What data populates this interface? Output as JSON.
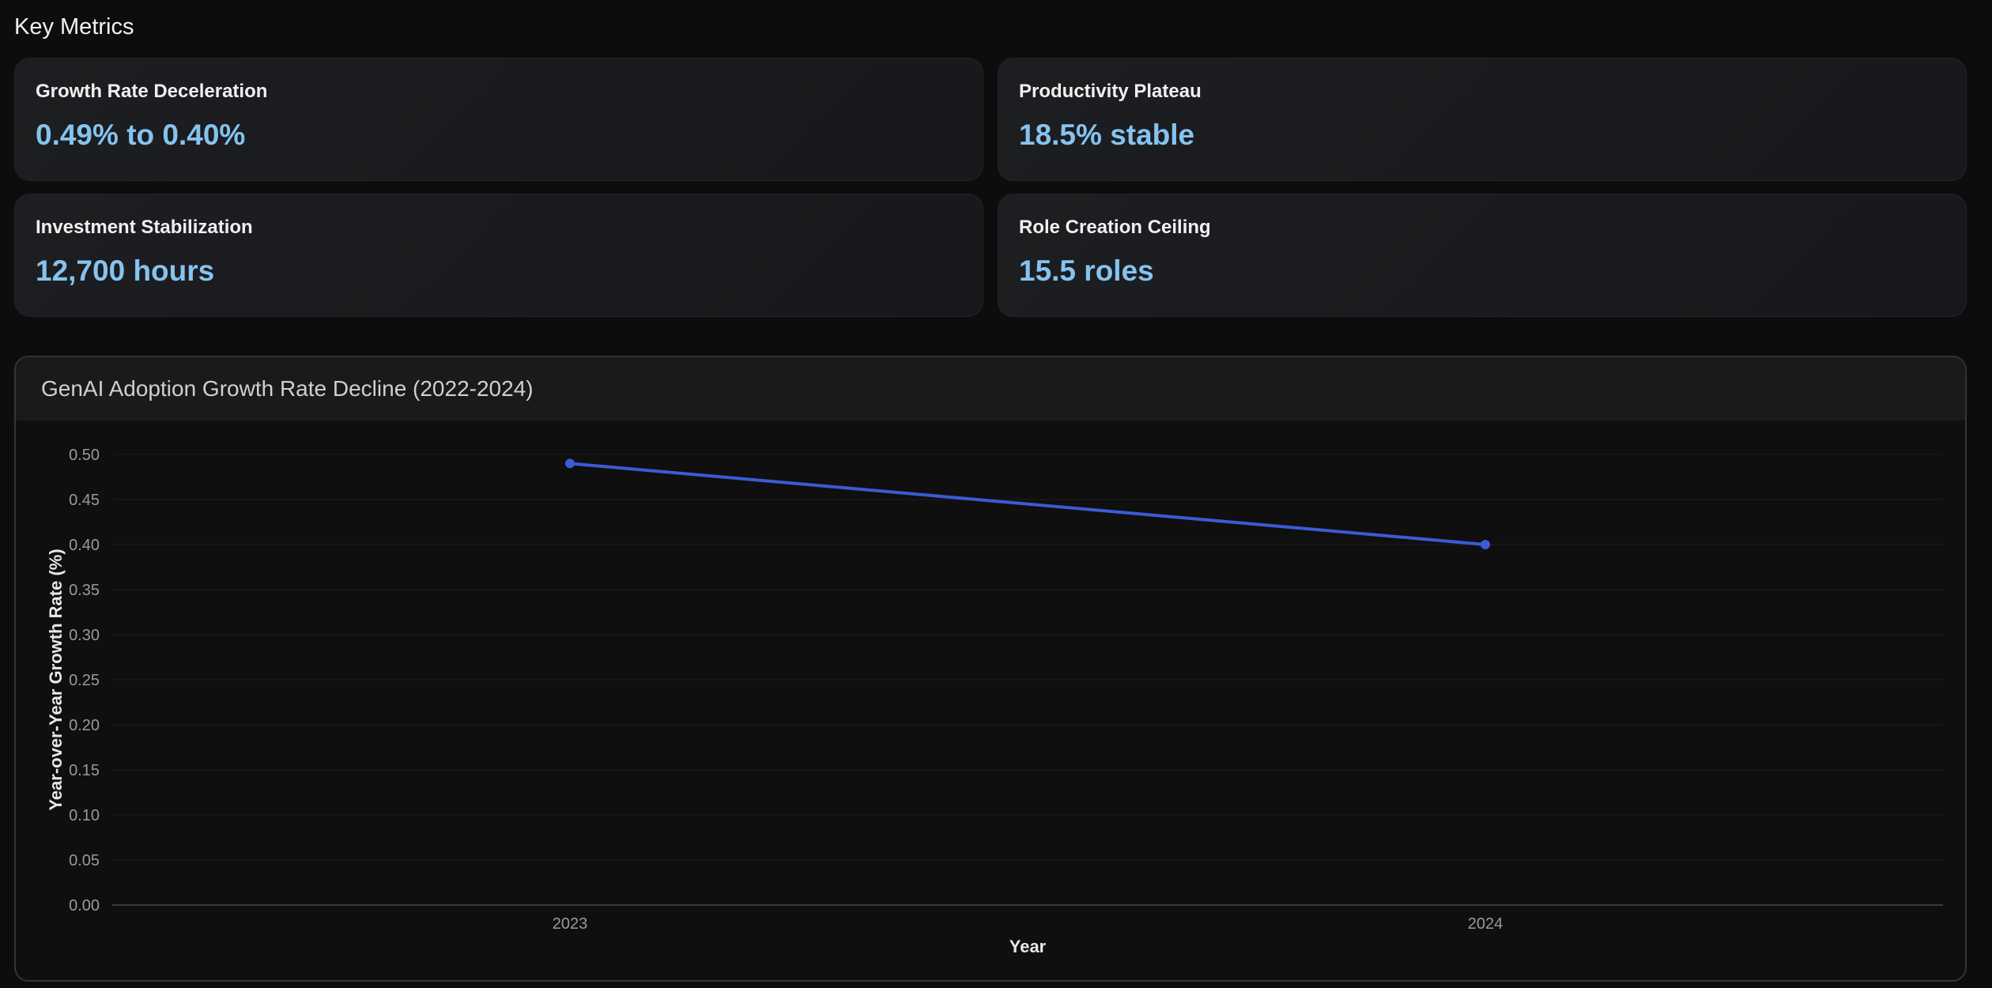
{
  "header": {
    "title": "Key Metrics"
  },
  "metrics": [
    {
      "label": "Growth Rate Deceleration",
      "value": "0.49% to 0.40%"
    },
    {
      "label": "Productivity Plateau",
      "value": "18.5% stable"
    },
    {
      "label": "Investment Stabilization",
      "value": "12,700 hours"
    },
    {
      "label": "Role Creation Ceiling",
      "value": "15.5 roles"
    }
  ],
  "chart": {
    "title": "GenAI Adoption Growth Rate Decline (2022-2024)"
  },
  "colors": {
    "accent_value": "#86c3ef",
    "line": "#3b5bd6",
    "background": "#0d0d0e"
  },
  "chart_data": {
    "type": "line",
    "title": "GenAI Adoption Growth Rate Decline (2022-2024)",
    "categories": [
      "2023",
      "2024"
    ],
    "series": [
      {
        "values": [
          0.49,
          0.4
        ]
      }
    ],
    "xlabel": "Year",
    "ylabel": "Year-over-Year Growth Rate (%)",
    "ylim": [
      0,
      0.5
    ],
    "yticks": [
      "0.00",
      "0.05",
      "0.10",
      "0.15",
      "0.20",
      "0.25",
      "0.30",
      "0.35",
      "0.40",
      "0.45",
      "0.50"
    ],
    "grid": true,
    "legend": "none"
  }
}
